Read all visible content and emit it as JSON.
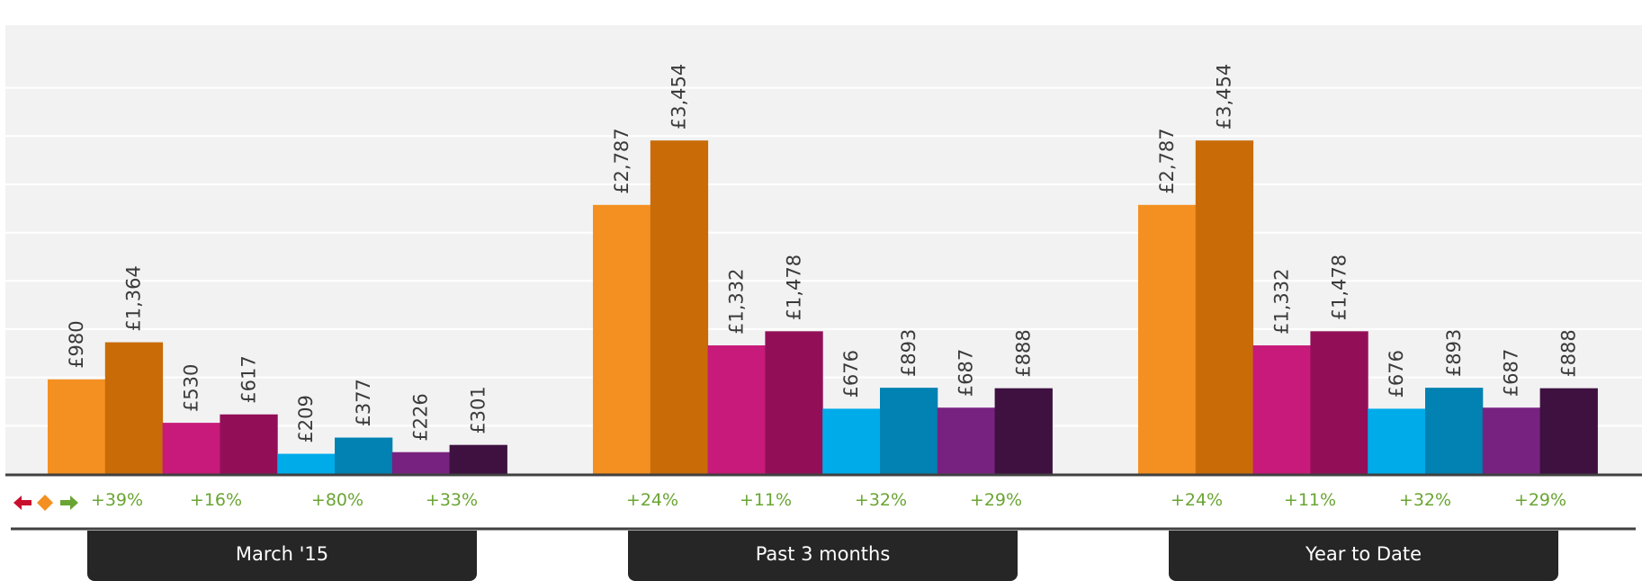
{
  "chart_data": {
    "type": "bar",
    "categories": [
      "March '15",
      "Past 3 months",
      "Year to Date"
    ],
    "series": [
      {
        "color": "#f39021",
        "values": [
          980,
          2787,
          2787
        ]
      },
      {
        "color": "#c96c07",
        "values": [
          1364,
          3454,
          3454
        ]
      },
      {
        "color": "#c81a7a",
        "values": [
          530,
          1332,
          1332
        ]
      },
      {
        "color": "#920f58",
        "values": [
          617,
          1478,
          1478
        ]
      },
      {
        "color": "#00abe9",
        "values": [
          209,
          676,
          676
        ]
      },
      {
        "color": "#0282b2",
        "values": [
          377,
          893,
          893
        ]
      },
      {
        "color": "#772280",
        "values": [
          226,
          687,
          687
        ]
      },
      {
        "color": "#3e1140",
        "values": [
          301,
          888,
          888
        ]
      }
    ],
    "value_labels": [
      [
        "£980",
        "£1,364",
        "£530",
        "£617",
        "£209",
        "£377",
        "£226",
        "£301"
      ],
      [
        "£2,787",
        "£3,454",
        "£1,332",
        "£1,478",
        "£676",
        "£893",
        "£687",
        "£888"
      ],
      [
        "£2,787",
        "£3,454",
        "£1,332",
        "£1,478",
        "£676",
        "£893",
        "£687",
        "£888"
      ]
    ],
    "changes": [
      [
        "+39%",
        "+16%",
        "+80%",
        "+33%"
      ],
      [
        "+24%",
        "+11%",
        "+32%",
        "+29%"
      ],
      [
        "+24%",
        "+11%",
        "+32%",
        "+29%"
      ]
    ],
    "ylim": [
      0,
      4000
    ],
    "grid": true
  },
  "trend_icons": [
    "arrow-left-icon",
    "diamond-icon",
    "arrow-right-icon"
  ],
  "colors": {
    "down": "#c8102e",
    "flat": "#f39021",
    "up": "#6aa533",
    "tab_bg": "#262626"
  }
}
